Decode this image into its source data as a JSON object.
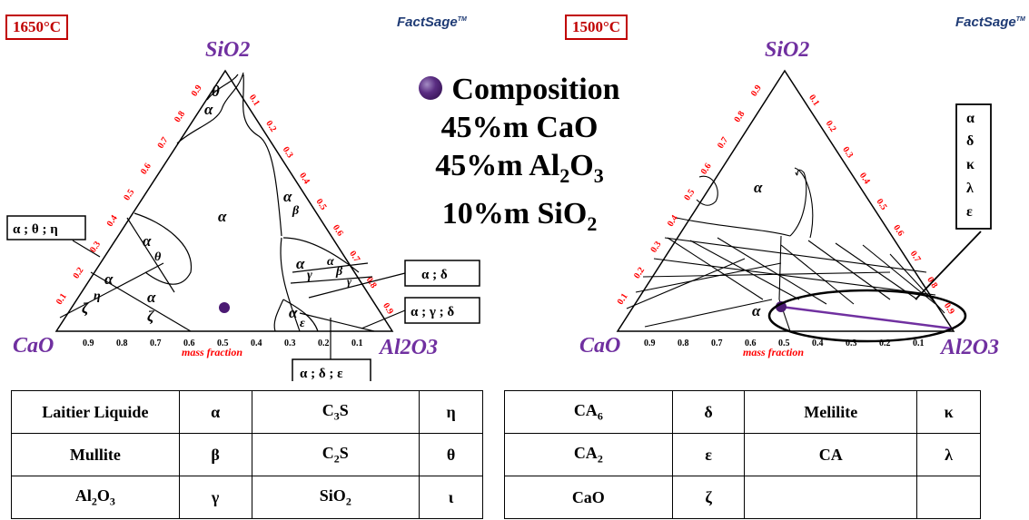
{
  "left_panel": {
    "temperature": "1650°C",
    "logo_main": "FactSage",
    "logo_tm": "TM",
    "vertex_top": "SiO2",
    "vertex_left": "CaO",
    "vertex_right": "Al2O3",
    "axis_label": "mass fraction",
    "ticks": [
      "0.1",
      "0.2",
      "0.3",
      "0.4",
      "0.5",
      "0.6",
      "0.7",
      "0.8",
      "0.9"
    ],
    "bottom_ticks": [
      "0.9",
      "0.8",
      "0.7",
      "0.6",
      "0.5",
      "0.4",
      "0.3",
      "0.2",
      "0.1"
    ],
    "callout_left": "α ; θ ; η",
    "callout_ad": "α ; δ",
    "callout_agd": "α ; γ ; δ",
    "callout_ade": "α ; δ ; ε",
    "regions": [
      "θ",
      "α",
      "α",
      "α",
      "β",
      "α",
      "θ",
      "α",
      "η",
      "ζ",
      "α",
      "ζ",
      "α",
      "γ",
      "α",
      "β",
      "γ",
      "α",
      "ε"
    ]
  },
  "right_panel": {
    "temperature": "1500°C",
    "logo_main": "FactSage",
    "logo_tm": "TM",
    "vertex_top": "SiO2",
    "vertex_left": "CaO",
    "vertex_right": "Al2O3",
    "axis_label": "mass fraction",
    "region_alpha_top": "α",
    "region_alpha_bottom": "α",
    "phase_list": [
      "α",
      "δ",
      "κ",
      "λ",
      "ε"
    ]
  },
  "composition": {
    "title": "Composition",
    "line1": "45%m CaO",
    "line2_pre": "45%m Al",
    "line2_sub1": "2",
    "line2_mid": "O",
    "line2_sub2": "3",
    "line3_pre": "10%m SiO",
    "line3_sub": "2"
  },
  "legend_left": [
    [
      {
        "t": "Laitier Liquide"
      },
      {
        "t": "α"
      },
      {
        "t": "C",
        "sub": "3",
        "post": "S"
      },
      {
        "t": "η"
      }
    ],
    [
      {
        "t": "Mullite"
      },
      {
        "t": "β"
      },
      {
        "t": "C",
        "sub": "2",
        "post": "S"
      },
      {
        "t": "θ"
      }
    ],
    [
      {
        "t": "Al",
        "sub": "2",
        "post": "O",
        "sub2": "3"
      },
      {
        "t": "γ"
      },
      {
        "t": "SiO",
        "sub": "2"
      },
      {
        "t": "ι"
      }
    ]
  ],
  "legend_right": [
    [
      {
        "t": "CA",
        "sub": "6"
      },
      {
        "t": "δ"
      },
      {
        "t": "Melilite"
      },
      {
        "t": "κ"
      }
    ],
    [
      {
        "t": "CA",
        "sub": "2"
      },
      {
        "t": "ε"
      },
      {
        "t": "CA"
      },
      {
        "t": "λ"
      }
    ],
    [
      {
        "t": "CaO"
      },
      {
        "t": "ζ"
      },
      {
        "t": ""
      },
      {
        "t": ""
      }
    ]
  ],
  "colors": {
    "accent_red": "#c00000",
    "vertex_purple": "#7030a0",
    "tick_red": "#ff0000",
    "tie_line": "#7030a0"
  }
}
